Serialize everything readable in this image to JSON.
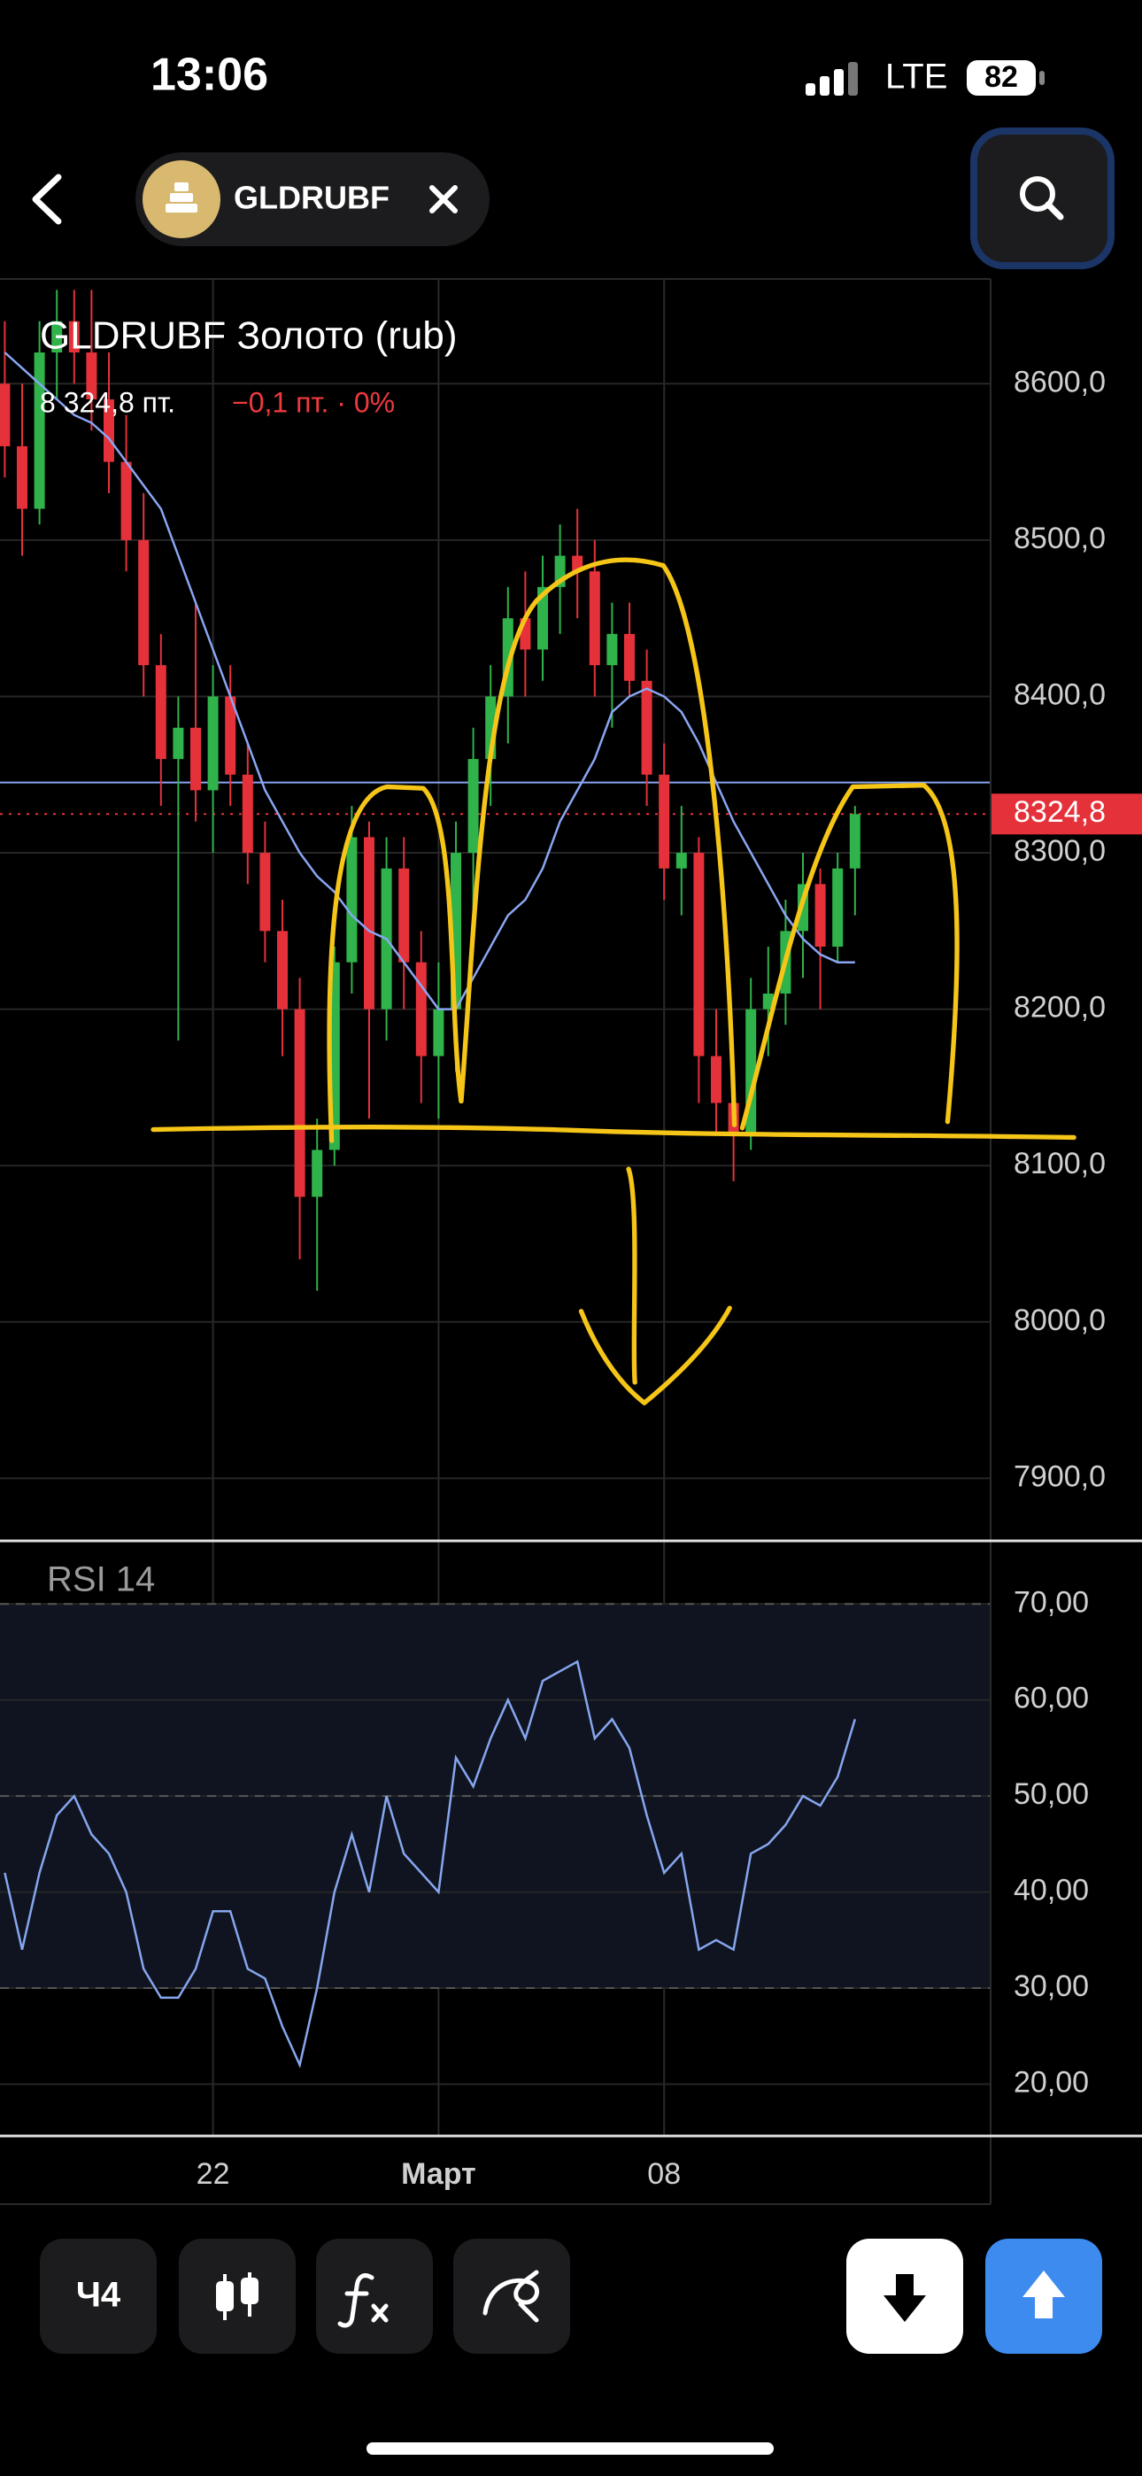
{
  "status_bar": {
    "time": "13:06",
    "network": "LTE",
    "battery": "82"
  },
  "header": {
    "ticker": "GLDRUBF"
  },
  "chart_data": [
    {
      "type": "candlestick",
      "title": "GLDRUBF Золото (rub)",
      "price_text": "8 324,8 пт.",
      "change_text": "−0,1 пт. · 0%",
      "categories": [
        null,
        null,
        null,
        null,
        null,
        null,
        null,
        null,
        null,
        null,
        null,
        null,
        "22",
        null,
        null,
        null,
        null,
        null,
        null,
        null,
        null,
        null,
        null,
        null,
        null,
        "Март",
        null,
        null,
        null,
        null,
        null,
        null,
        null,
        null,
        null,
        null,
        null,
        null,
        "08",
        null,
        null,
        null,
        null,
        null,
        null,
        null,
        null,
        null,
        null,
        null
      ],
      "open": [
        8600,
        8560,
        8520,
        8620,
        8640,
        8620,
        8590,
        8550,
        8500,
        8420,
        8360,
        8380,
        8340,
        8400,
        8350,
        8300,
        8250,
        8200,
        8080,
        8110,
        8230,
        8310,
        8200,
        8290,
        8230,
        8170,
        8200,
        8300,
        8360,
        8400,
        8450,
        8430,
        8470,
        8490,
        8480,
        8420,
        8440,
        8410,
        8350,
        8290,
        8300,
        8170,
        8140,
        8120,
        8200,
        8210,
        8250,
        8280,
        8240,
        8290
      ],
      "high": [
        8640,
        8600,
        8640,
        8660,
        8660,
        8660,
        8620,
        8580,
        8530,
        8440,
        8400,
        8460,
        8420,
        8420,
        8370,
        8320,
        8270,
        8220,
        8130,
        8240,
        8330,
        8320,
        8310,
        8310,
        8250,
        8230,
        8320,
        8380,
        8420,
        8470,
        8480,
        8490,
        8510,
        8520,
        8500,
        8460,
        8460,
        8430,
        8370,
        8330,
        8310,
        8200,
        8160,
        8220,
        8240,
        8270,
        8300,
        8290,
        8300,
        8330
      ],
      "low": [
        8540,
        8490,
        8510,
        8590,
        8600,
        8570,
        8530,
        8480,
        8400,
        8330,
        8180,
        8320,
        8300,
        8330,
        8280,
        8230,
        8170,
        8040,
        8020,
        8100,
        8210,
        8130,
        8180,
        8200,
        8140,
        8130,
        8160,
        8260,
        8330,
        8370,
        8400,
        8410,
        8440,
        8450,
        8400,
        8380,
        8400,
        8330,
        8270,
        8260,
        8140,
        8120,
        8090,
        8110,
        8170,
        8190,
        8220,
        8200,
        8230,
        8260
      ],
      "close": [
        8560,
        8520,
        8620,
        8640,
        8620,
        8590,
        8550,
        8500,
        8420,
        8360,
        8380,
        8340,
        8400,
        8350,
        8300,
        8250,
        8200,
        8080,
        8110,
        8230,
        8310,
        8200,
        8290,
        8230,
        8170,
        8200,
        8300,
        8360,
        8400,
        8450,
        8430,
        8470,
        8490,
        8480,
        8420,
        8440,
        8410,
        8350,
        8290,
        8300,
        8170,
        8140,
        8120,
        8200,
        8210,
        8250,
        8280,
        8240,
        8290,
        8324.8
      ],
      "up_color": "#2fb34a",
      "down_color": "#e5323a",
      "ma": {
        "color": "#8aa6f2",
        "values": [
          8620,
          8610,
          8600,
          8590,
          8580,
          8575,
          8565,
          8550,
          8535,
          8520,
          8490,
          8460,
          8430,
          8400,
          8370,
          8340,
          8320,
          8300,
          8285,
          8275,
          8260,
          8250,
          8245,
          8230,
          8215,
          8200,
          8200,
          8220,
          8240,
          8260,
          8270,
          8290,
          8320,
          8340,
          8360,
          8390,
          8400,
          8405,
          8400,
          8390,
          8370,
          8345,
          8320,
          8300,
          8280,
          8260,
          8245,
          8235,
          8230,
          8230
        ]
      },
      "last_price": {
        "value": 8324.8,
        "label": "8324,8"
      },
      "level": 8345,
      "ylim": [
        7860,
        8667
      ],
      "yticks": [
        {
          "value": 7900,
          "label": "7900,0"
        },
        {
          "value": 8000,
          "label": "8000,0"
        },
        {
          "value": 8100,
          "label": "8100,0"
        },
        {
          "value": 8200,
          "label": "8200,0"
        },
        {
          "value": 8300,
          "label": "8300,0"
        },
        {
          "value": 8400,
          "label": "8400,0"
        },
        {
          "value": 8500,
          "label": "8500,0"
        },
        {
          "value": 8600,
          "label": "8600,0"
        }
      ],
      "grid": true
    },
    {
      "type": "line",
      "title": "RSI 14",
      "color": "#86a6ee",
      "values": [
        42,
        34,
        42,
        48,
        50,
        46,
        44,
        40,
        32,
        29,
        29,
        32,
        38,
        38,
        32,
        31,
        26,
        22,
        30,
        40,
        46,
        40,
        50,
        44,
        42,
        40,
        54,
        51,
        56,
        60,
        56,
        62,
        63,
        64,
        56,
        58,
        55,
        48,
        42,
        44,
        34,
        35,
        34,
        44,
        45,
        47,
        50,
        49,
        52,
        58
      ],
      "band": [
        30,
        70
      ],
      "midline": 50,
      "ylim": [
        14.6,
        76.3
      ],
      "yticks": [
        {
          "value": 20,
          "label": "20,00"
        },
        {
          "value": 30,
          "label": "30,00"
        },
        {
          "value": 40,
          "label": "40,00"
        },
        {
          "value": 50,
          "label": "50,00"
        },
        {
          "value": 60,
          "label": "60,00"
        },
        {
          "value": 70,
          "label": "70,00"
        }
      ],
      "grid": true
    }
  ],
  "toolbar": {
    "interval": "Ч4"
  }
}
